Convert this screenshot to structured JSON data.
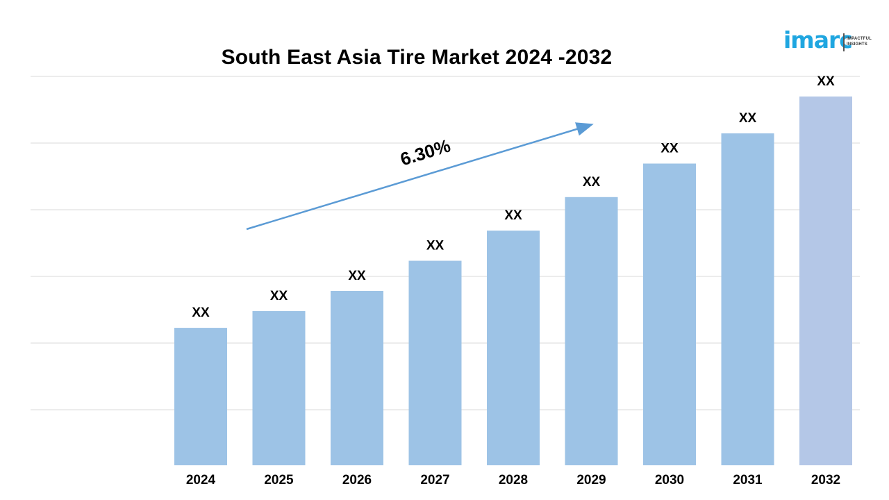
{
  "chart_data": {
    "type": "bar",
    "title": "South East Asia Tire Market 2024 -2032",
    "categories": [
      "2024",
      "2025",
      "2026",
      "2027",
      "2028",
      "2029",
      "2030",
      "2031",
      "2032"
    ],
    "values": [
      41,
      46,
      52,
      61,
      70,
      80,
      90,
      99,
      110
    ],
    "data_labels": [
      "XX",
      "XX",
      "XX",
      "XX",
      "XX",
      "XX",
      "XX",
      "XX",
      "XX"
    ],
    "ylim": [
      0,
      116
    ],
    "grid": true,
    "y_tick_labels_shown": false,
    "legend": "none",
    "annotations": [
      {
        "type": "growth-arrow",
        "text": "6.30%",
        "from_category": "2025",
        "to_category": "2029"
      }
    ],
    "colors": {
      "bar": "#9dc3e6",
      "last_bar": "#b4c7e7",
      "arrow": "#5b9bd5",
      "gridline": "#d9d9d9"
    }
  },
  "logo": {
    "brand": "imarc",
    "tagline_line1": "IMPACTFUL",
    "tagline_line2": "INSIGHTS",
    "color": "#1fa6e0"
  }
}
